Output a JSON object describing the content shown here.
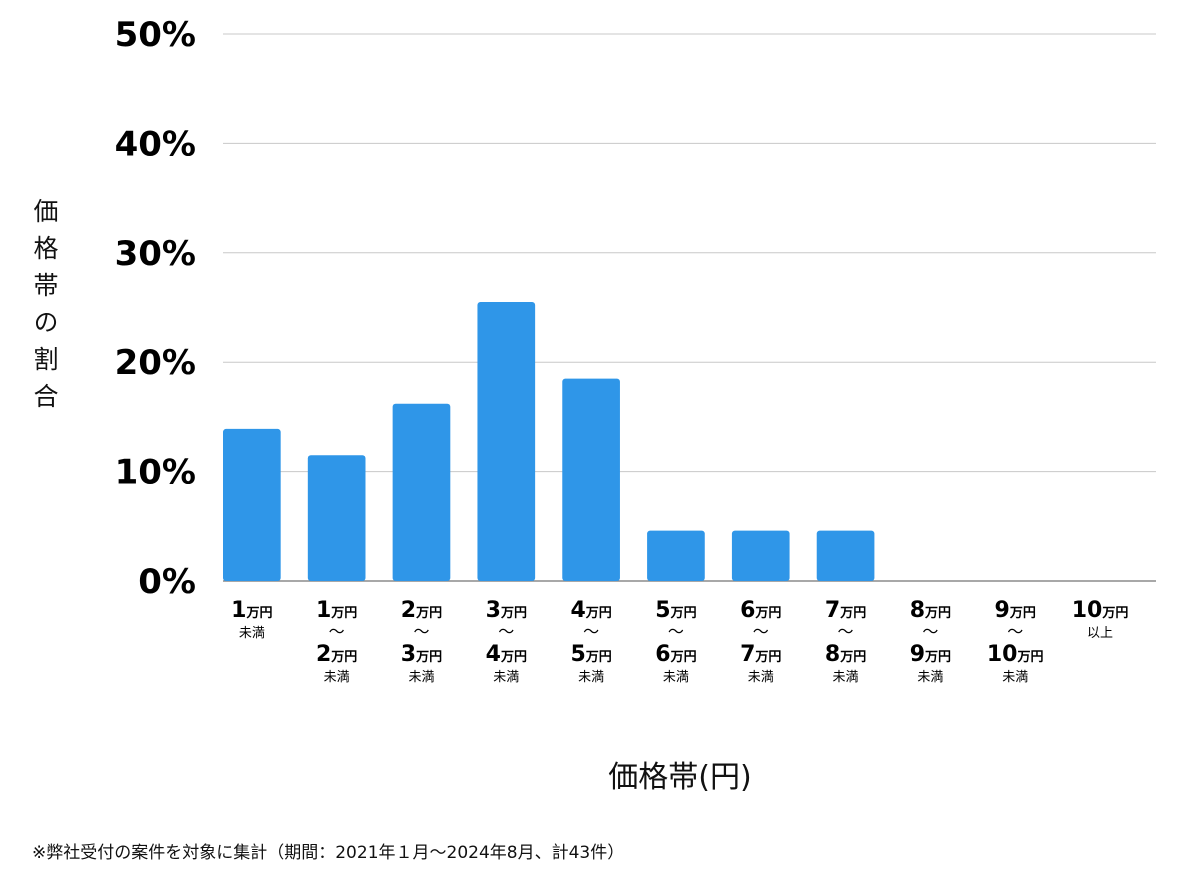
{
  "chart_data": {
    "type": "bar",
    "title": "",
    "xlabel": "価格帯(円)",
    "ylabel": "価格帯の割合",
    "ylim": [
      0,
      50
    ],
    "yticks": [
      "0%",
      "10%",
      "20%",
      "30%",
      "40%",
      "50%"
    ],
    "grid": true,
    "bar_color": "#2F96E8",
    "categories": [
      {
        "lines": [
          {
            "num": "1",
            "unit": "万円"
          }
        ],
        "suffix": "未満"
      },
      {
        "lines": [
          {
            "num": "1",
            "unit": "万円"
          },
          {
            "num": "2",
            "unit": "万円"
          }
        ],
        "suffix": "未満"
      },
      {
        "lines": [
          {
            "num": "2",
            "unit": "万円"
          },
          {
            "num": "3",
            "unit": "万円"
          }
        ],
        "suffix": "未満"
      },
      {
        "lines": [
          {
            "num": "3",
            "unit": "万円"
          },
          {
            "num": "4",
            "unit": "万円"
          }
        ],
        "suffix": "未満"
      },
      {
        "lines": [
          {
            "num": "4",
            "unit": "万円"
          },
          {
            "num": "5",
            "unit": "万円"
          }
        ],
        "suffix": "未満"
      },
      {
        "lines": [
          {
            "num": "5",
            "unit": "万円"
          },
          {
            "num": "6",
            "unit": "万円"
          }
        ],
        "suffix": "未満"
      },
      {
        "lines": [
          {
            "num": "6",
            "unit": "万円"
          },
          {
            "num": "7",
            "unit": "万円"
          }
        ],
        "suffix": "未満"
      },
      {
        "lines": [
          {
            "num": "7",
            "unit": "万円"
          },
          {
            "num": "8",
            "unit": "万円"
          }
        ],
        "suffix": "未満"
      },
      {
        "lines": [
          {
            "num": "8",
            "unit": "万円"
          },
          {
            "num": "9",
            "unit": "万円"
          }
        ],
        "suffix": "未満"
      },
      {
        "lines": [
          {
            "num": "9",
            "unit": "万円"
          },
          {
            "num": "10",
            "unit": "万円"
          }
        ],
        "suffix": "未満"
      },
      {
        "lines": [
          {
            "num": "10",
            "unit": "万円"
          }
        ],
        "suffix": "以上"
      }
    ],
    "range_separator": "～",
    "values": [
      13.9,
      11.5,
      16.2,
      25.5,
      18.5,
      4.6,
      4.6,
      4.6,
      0,
      0,
      0
    ]
  },
  "footnote": "※弊社受付の案件を対象に集計（期間：2021年１月～2024年8月、計43件）"
}
